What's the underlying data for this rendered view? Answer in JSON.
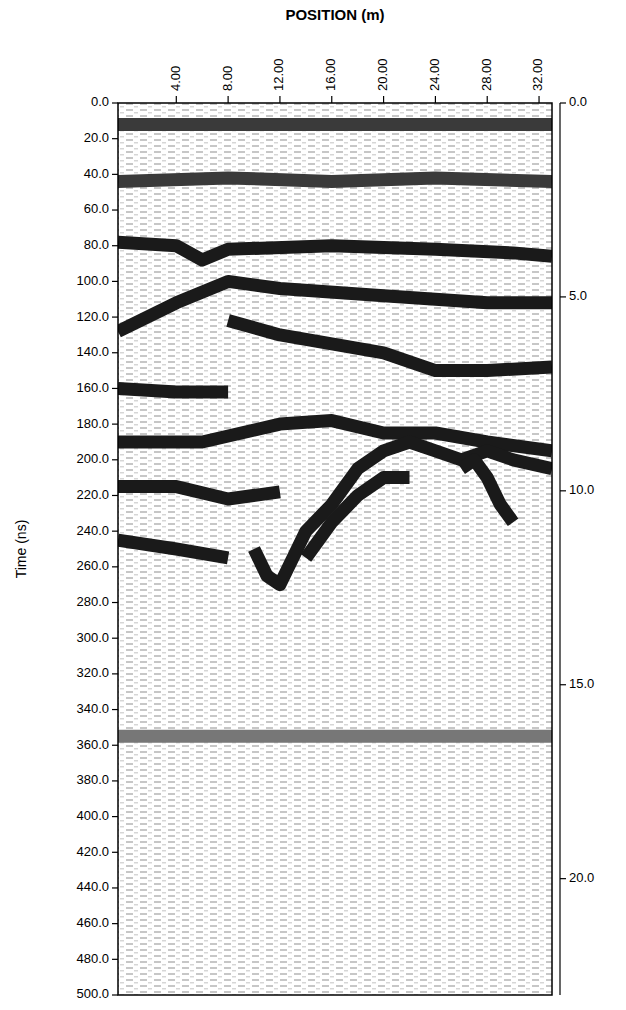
{
  "chart_data": {
    "type": "line",
    "x_label": "POSITION (m)",
    "y_label": "Time (ns)",
    "xlim": [
      -0.5,
      33
    ],
    "xticks": [
      {
        "value": 4,
        "label": "4.00"
      },
      {
        "value": 8,
        "label": "8.00"
      },
      {
        "value": 12,
        "label": "12.00"
      },
      {
        "value": 16,
        "label": "16.00"
      },
      {
        "value": 20,
        "label": "20.00"
      },
      {
        "value": 24,
        "label": "24.00"
      },
      {
        "value": 28,
        "label": "28.00"
      },
      {
        "value": 32,
        "label": "32.00"
      }
    ],
    "ylim": [
      0,
      500
    ],
    "yticks": [
      {
        "value": 0,
        "label": "0.0"
      },
      {
        "value": 20,
        "label": "20.0"
      },
      {
        "value": 40,
        "label": "40.0"
      },
      {
        "value": 60,
        "label": "60.0"
      },
      {
        "value": 80,
        "label": "80.0"
      },
      {
        "value": 100,
        "label": "100.0"
      },
      {
        "value": 120,
        "label": "120.0"
      },
      {
        "value": 140,
        "label": "140.0"
      },
      {
        "value": 160,
        "label": "160.0"
      },
      {
        "value": 180,
        "label": "180.0"
      },
      {
        "value": 200,
        "label": "200.0"
      },
      {
        "value": 220,
        "label": "220.0"
      },
      {
        "value": 240,
        "label": "240.0"
      },
      {
        "value": 260,
        "label": "260.0"
      },
      {
        "value": 280,
        "label": "280.0"
      },
      {
        "value": 300,
        "label": "300.0"
      },
      {
        "value": 320,
        "label": "320.0"
      },
      {
        "value": 340,
        "label": "340.0"
      },
      {
        "value": 360,
        "label": "360.0"
      },
      {
        "value": 380,
        "label": "380.0"
      },
      {
        "value": 400,
        "label": "400.0"
      },
      {
        "value": 420,
        "label": "420.0"
      },
      {
        "value": 440,
        "label": "440.0"
      },
      {
        "value": 460,
        "label": "460.0"
      },
      {
        "value": 480,
        "label": "480.0"
      },
      {
        "value": 500,
        "label": "500.0"
      }
    ],
    "y2lim": [
      0,
      23
    ],
    "y2ticks": [
      {
        "value": 0,
        "label": "0.0"
      },
      {
        "value": 5,
        "label": "5.0"
      },
      {
        "value": 10,
        "label": "10.0"
      },
      {
        "value": 15,
        "label": "15.0"
      },
      {
        "value": 20,
        "label": "20.0"
      }
    ],
    "series": [
      {
        "color": "#3a3a3a",
        "x": [
          -0.5,
          33
        ],
        "values": [
          12,
          12
        ]
      },
      {
        "color": "#3a3a3a",
        "x": [
          -0.5,
          8,
          16,
          24,
          33
        ],
        "values": [
          44,
          42,
          44,
          42,
          44
        ]
      },
      {
        "color": "#1a1a1a",
        "x": [
          -0.5,
          4,
          6,
          8,
          16,
          24,
          30,
          33
        ],
        "values": [
          78,
          80,
          88,
          82,
          80,
          82,
          84,
          86
        ]
      },
      {
        "color": "#1a1a1a",
        "x": [
          -0.5,
          4,
          8,
          12,
          20,
          28,
          33
        ],
        "values": [
          128,
          112,
          100,
          104,
          108,
          112,
          112
        ]
      },
      {
        "color": "#1a1a1a",
        "x": [
          8,
          12,
          16,
          20,
          24,
          28,
          33
        ],
        "values": [
          122,
          130,
          135,
          140,
          150,
          150,
          148
        ]
      },
      {
        "color": "#1a1a1a",
        "x": [
          -0.5,
          4,
          8
        ],
        "values": [
          160,
          162,
          162
        ]
      },
      {
        "color": "#1a1a1a",
        "x": [
          -0.5,
          6,
          12,
          16,
          20,
          24,
          28,
          33
        ],
        "values": [
          190,
          190,
          180,
          178,
          185,
          185,
          190,
          195
        ]
      },
      {
        "color": "#1a1a1a",
        "x": [
          10,
          11,
          12,
          14,
          16,
          18,
          20,
          22,
          24,
          26,
          28,
          30,
          33
        ],
        "values": [
          250,
          265,
          270,
          240,
          225,
          205,
          195,
          190,
          195,
          200,
          195,
          200,
          205
        ]
      },
      {
        "color": "#1a1a1a",
        "x": [
          14,
          16,
          18,
          20,
          22
        ],
        "values": [
          255,
          235,
          220,
          210,
          210
        ]
      },
      {
        "color": "#1a1a1a",
        "x": [
          26,
          27,
          28,
          29,
          30
        ],
        "values": [
          205,
          200,
          210,
          225,
          235
        ]
      },
      {
        "color": "#1a1a1a",
        "x": [
          -0.5,
          4,
          8,
          12
        ],
        "values": [
          215,
          215,
          222,
          218
        ]
      },
      {
        "color": "#1a1a1a",
        "x": [
          -0.5,
          4,
          8
        ],
        "values": [
          245,
          250,
          255
        ]
      },
      {
        "color": "#777777",
        "x": [
          -0.5,
          33
        ],
        "values": [
          355,
          355
        ]
      }
    ]
  }
}
